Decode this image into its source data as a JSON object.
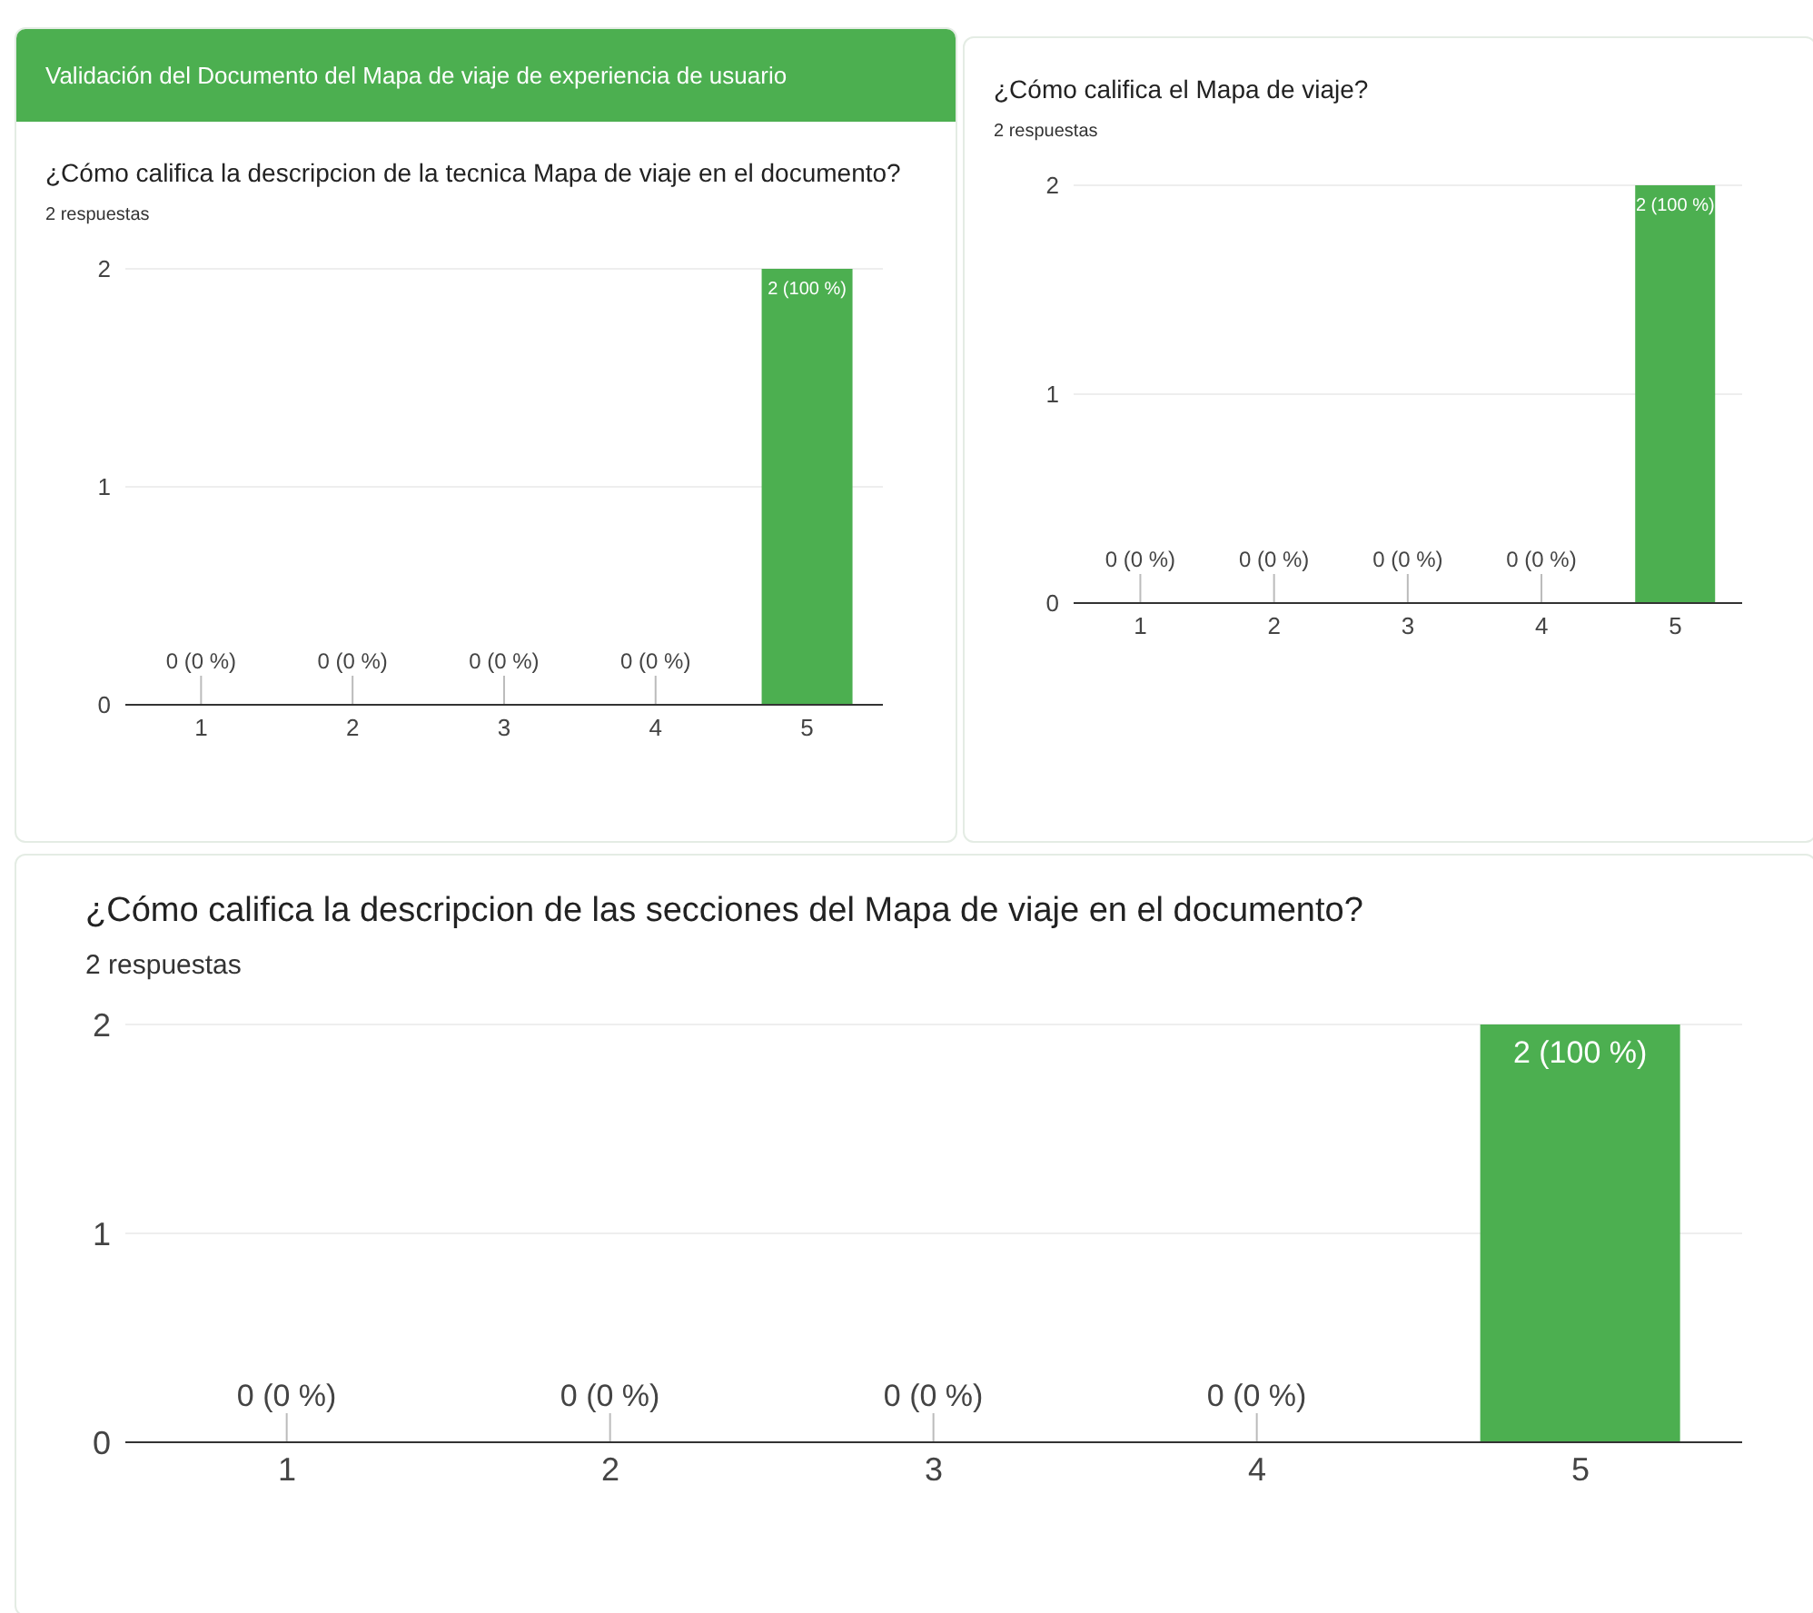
{
  "chart_data": [
    {
      "type": "bar",
      "annotations": [
        "Validación del Documento del Mapa de viaje de experiencia de usuario"
      ],
      "title": "¿Cómo califica la descripcion de la tecnica Mapa de viaje en el documento?",
      "subtitle": "2 respuestas",
      "categories": [
        "1",
        "2",
        "3",
        "4",
        "5"
      ],
      "values": [
        0,
        0,
        0,
        0,
        2
      ],
      "value_labels": [
        "0 (0 %)",
        "0 (0 %)",
        "0 (0 %)",
        "0 (0 %)",
        "2 (100 %)"
      ],
      "color": "#4caf50",
      "ylim": [
        0,
        2
      ],
      "yticks": [
        0,
        1,
        2
      ],
      "grid": "y"
    },
    {
      "type": "bar",
      "title": "¿Cómo califica el Mapa de viaje?",
      "subtitle": "2 respuestas",
      "categories": [
        "1",
        "2",
        "3",
        "4",
        "5"
      ],
      "values": [
        0,
        0,
        0,
        0,
        2
      ],
      "value_labels": [
        "0 (0 %)",
        "0 (0 %)",
        "0 (0 %)",
        "0 (0 %)",
        "2 (100 %)"
      ],
      "color": "#4caf50",
      "ylim": [
        0,
        2
      ],
      "yticks": [
        0,
        1,
        2
      ],
      "grid": "y"
    },
    {
      "type": "bar",
      "title": "¿Cómo califica la descripcion de las secciones del Mapa de viaje en el documento?",
      "subtitle": "2 respuestas",
      "categories": [
        "1",
        "2",
        "3",
        "4",
        "5"
      ],
      "values": [
        0,
        0,
        0,
        0,
        2
      ],
      "value_labels": [
        "0 (0 %)",
        "0 (0 %)",
        "0 (0 %)",
        "0 (0 %)",
        "2 (100 %)"
      ],
      "color": "#4caf50",
      "ylim": [
        0,
        2
      ],
      "yticks": [
        0,
        1,
        2
      ],
      "grid": "y"
    }
  ]
}
